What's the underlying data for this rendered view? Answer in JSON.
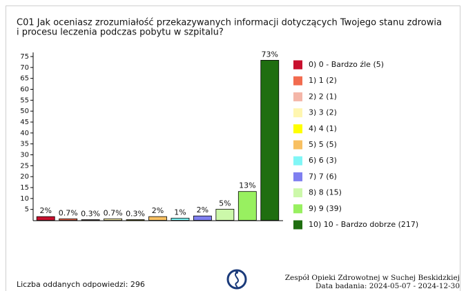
{
  "chart_data": {
    "type": "bar",
    "title": [
      "C01 Jak oceniasz zrozumiałość przekazywanych informacji dotyczących Twojego stanu zdrowia",
      "i procesu leczenia podczas pobytu w szpitalu?"
    ],
    "categories": [
      "0) 0 - Bardzo źle (5)",
      "1) 1 (2)",
      "2) 2 (1)",
      "3) 3 (2)",
      "4) 4 (1)",
      "5) 5 (5)",
      "6) 6 (3)",
      "7) 7 (6)",
      "8) 8 (15)",
      "9) 9 (39)",
      "10) 10 - Bardzo dobrze (217)"
    ],
    "values": [
      1.7,
      0.7,
      0.3,
      0.7,
      0.3,
      1.7,
      1.0,
      2.0,
      5.1,
      13.2,
      73.3
    ],
    "value_labels": [
      "2%",
      "0.7%",
      "0.3%",
      "0.7%",
      "0.3%",
      "2%",
      "1%",
      "2%",
      "5%",
      "13%",
      "73%"
    ],
    "colors": [
      "#c8102e",
      "#f26b4f",
      "#f4b6a8",
      "#fff6b0",
      "#ffff00",
      "#f8c062",
      "#80f6f6",
      "#7f7ff0",
      "#ccf8aa",
      "#98f060",
      "#1f6e10"
    ],
    "ylim": [
      0,
      75
    ],
    "yticks": [
      5,
      10,
      15,
      20,
      25,
      30,
      35,
      40,
      45,
      50,
      55,
      60,
      65,
      70,
      75
    ],
    "legend": "right",
    "footer": {
      "responses": "Liczba oddanych odpowiedzi: 296",
      "organization": "Zespół Opieki Zdrowotnej w Suchej Beskidzkiej",
      "date": "Data badania: 2024-05-07 - 2024-12-30"
    }
  }
}
